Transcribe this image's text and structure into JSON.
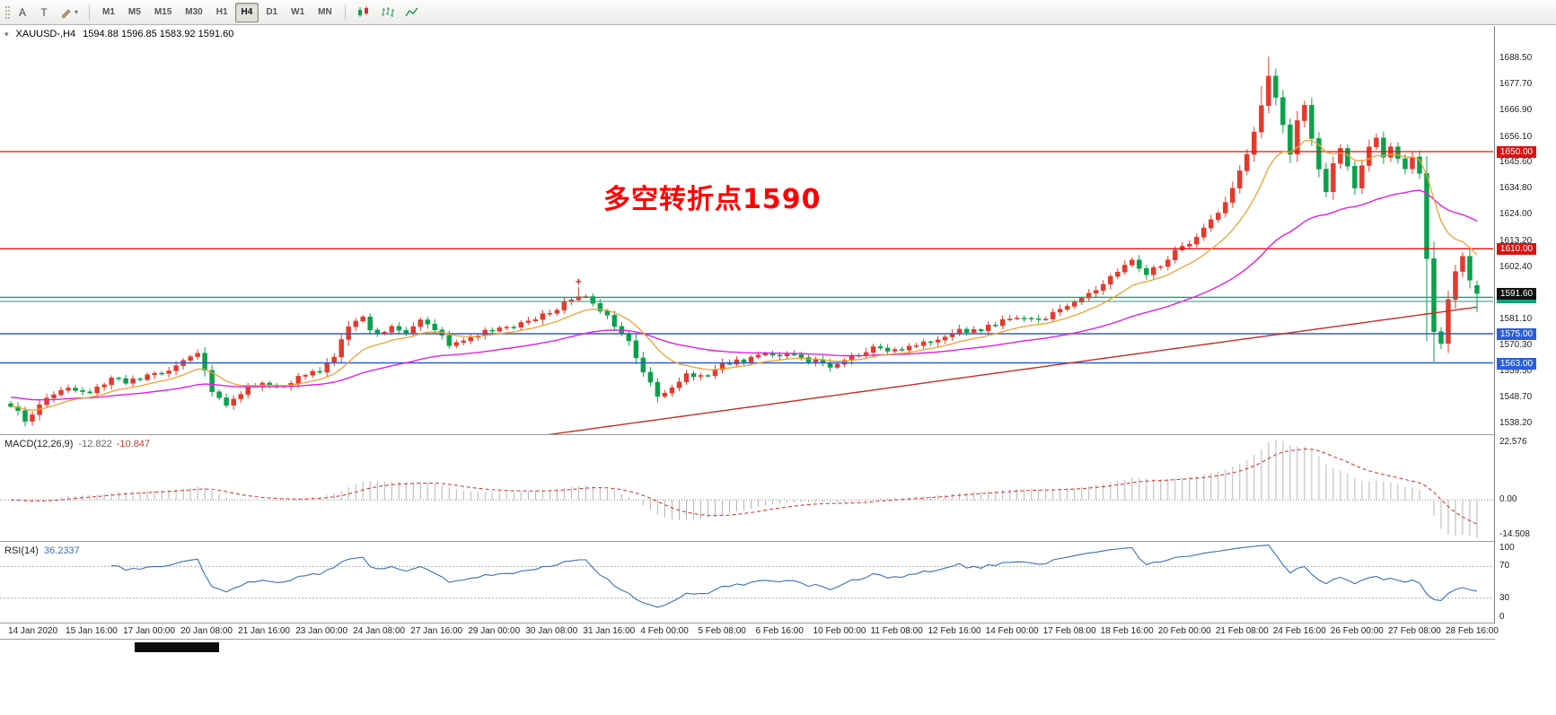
{
  "ui": {
    "header": {
      "symbol": "XAUUSD-,H4",
      "ohlc": "1594.88 1596.85 1583.92 1591.60",
      "expand_glyph": "▾"
    },
    "toolbar": {
      "a_label": "A",
      "t_label": "T",
      "timeframes": [
        {
          "label": "M1"
        },
        {
          "label": "M5"
        },
        {
          "label": "M15"
        },
        {
          "label": "M30"
        },
        {
          "label": "H1"
        },
        {
          "label": "H4",
          "active": true
        },
        {
          "label": "D1"
        },
        {
          "label": "W1"
        },
        {
          "label": "MN"
        }
      ],
      "icons_right": [
        "candlestick-mode-icon",
        "bar-chart-mode-icon",
        "line-chart-mode-icon"
      ]
    },
    "annotation": {
      "text": "多空转折点1590",
      "color": "#ff0000"
    },
    "macd": {
      "label": "MACD(12,26,9)",
      "value_main": "-12.822",
      "value_signal": "-10.847"
    },
    "rsi": {
      "label": "RSI(14)",
      "value": "36.2337"
    }
  },
  "chart_data": {
    "type": "candlestick",
    "symbol": "XAUUSD",
    "timeframe": "H4",
    "bars": 205,
    "ylim": [
      1534,
      1701
    ],
    "y_axis_labels": [
      "1688.50",
      "1677.70",
      "1666.90",
      "1656.10",
      "1645.60",
      "1634.80",
      "1624.00",
      "1613.20",
      "1602.40",
      "1581.10",
      "1570.30",
      "1559.50",
      "1548.70",
      "1538.20"
    ],
    "x_labels": [
      "14 Jan 2020",
      "15 Jan 16:00",
      "17 Jan 00:00",
      "20 Jan 08:00",
      "21 Jan 16:00",
      "23 Jan 00:00",
      "24 Jan 08:00",
      "27 Jan 16:00",
      "29 Jan 00:00",
      "30 Jan 08:00",
      "31 Jan 16:00",
      "4 Feb 00:00",
      "5 Feb 08:00",
      "6 Feb 16:00",
      "10 Feb 00:00",
      "11 Feb 08:00",
      "12 Feb 16:00",
      "14 Feb 00:00",
      "17 Feb 08:00",
      "18 Feb 16:00",
      "20 Feb 00:00",
      "21 Feb 08:00",
      "24 Feb 16:00",
      "26 Feb 00:00",
      "27 Feb 08:00",
      "28 Feb 16:00"
    ],
    "price_path_anchors": [
      [
        0,
        1545
      ],
      [
        2,
        1540
      ],
      [
        5,
        1548
      ],
      [
        8,
        1553
      ],
      [
        11,
        1551
      ],
      [
        14,
        1556
      ],
      [
        16,
        1555
      ],
      [
        19,
        1558
      ],
      [
        22,
        1560
      ],
      [
        25,
        1565
      ],
      [
        26,
        1566
      ],
      [
        28,
        1552
      ],
      [
        30,
        1546
      ],
      [
        32,
        1551
      ],
      [
        34,
        1554
      ],
      [
        37,
        1553
      ],
      [
        40,
        1557
      ],
      [
        43,
        1560
      ],
      [
        45,
        1566
      ],
      [
        47,
        1579
      ],
      [
        49,
        1581
      ],
      [
        51,
        1574
      ],
      [
        53,
        1577
      ],
      [
        55,
        1575
      ],
      [
        57,
        1581
      ],
      [
        59,
        1577
      ],
      [
        61,
        1570
      ],
      [
        63,
        1573
      ],
      [
        66,
        1576
      ],
      [
        69,
        1578
      ],
      [
        72,
        1580
      ],
      [
        75,
        1584
      ],
      [
        78,
        1589
      ],
      [
        80,
        1590
      ],
      [
        82,
        1585
      ],
      [
        84,
        1579
      ],
      [
        86,
        1572
      ],
      [
        88,
        1560
      ],
      [
        90,
        1549
      ],
      [
        92,
        1553
      ],
      [
        94,
        1558
      ],
      [
        96,
        1557
      ],
      [
        99,
        1562
      ],
      [
        102,
        1564
      ],
      [
        105,
        1567
      ],
      [
        108,
        1566
      ],
      [
        111,
        1564
      ],
      [
        114,
        1562
      ],
      [
        117,
        1566
      ],
      [
        120,
        1569
      ],
      [
        123,
        1568
      ],
      [
        126,
        1571
      ],
      [
        129,
        1573
      ],
      [
        132,
        1576
      ],
      [
        135,
        1577
      ],
      [
        138,
        1580
      ],
      [
        141,
        1581
      ],
      [
        144,
        1582
      ],
      [
        147,
        1586
      ],
      [
        150,
        1591
      ],
      [
        152,
        1596
      ],
      [
        154,
        1601
      ],
      [
        156,
        1605
      ],
      [
        158,
        1600
      ],
      [
        160,
        1603
      ],
      [
        162,
        1609
      ],
      [
        164,
        1613
      ],
      [
        166,
        1618
      ],
      [
        168,
        1624
      ],
      [
        170,
        1634
      ],
      [
        172,
        1649
      ],
      [
        174,
        1669
      ],
      [
        175,
        1682
      ],
      [
        176,
        1672
      ],
      [
        177,
        1660
      ],
      [
        178,
        1650
      ],
      [
        179,
        1662
      ],
      [
        180,
        1670
      ],
      [
        181,
        1655
      ],
      [
        182,
        1642
      ],
      [
        183,
        1634
      ],
      [
        184,
        1645
      ],
      [
        185,
        1652
      ],
      [
        186,
        1643
      ],
      [
        187,
        1636
      ],
      [
        188,
        1645
      ],
      [
        189,
        1651
      ],
      [
        190,
        1655
      ],
      [
        191,
        1648
      ],
      [
        192,
        1653
      ],
      [
        193,
        1647
      ],
      [
        194,
        1642
      ],
      [
        195,
        1647
      ],
      [
        196,
        1640
      ],
      [
        197,
        1606
      ],
      [
        198,
        1575
      ],
      [
        199,
        1570
      ],
      [
        200,
        1588
      ],
      [
        201,
        1600
      ],
      [
        202,
        1607
      ],
      [
        203,
        1596
      ],
      [
        204,
        1592
      ]
    ],
    "wick_overrides": [
      {
        "bar": 2,
        "low": 1536.8
      },
      {
        "bar": 79,
        "high": 1594.3
      },
      {
        "bar": 174,
        "high": 1677.0
      },
      {
        "bar": 175,
        "high": 1689.2
      },
      {
        "bar": 197,
        "low": 1572.0
      },
      {
        "bar": 198,
        "low": 1563.3
      }
    ],
    "last_candle": {
      "open": 1594.88,
      "high": 1596.85,
      "low": 1583.92,
      "close": 1591.6
    },
    "current_price_label": "1591.60",
    "levels": [
      {
        "price": 1650.0,
        "label": "1650.00",
        "color": "#dd1111",
        "width": 1.3
      },
      {
        "price": 1610.0,
        "label": "1610.00",
        "color": "#dd1111",
        "width": 1.3
      },
      {
        "price": 1590.0,
        "label": "1590.00",
        "color": "#0fa37c",
        "width": 1.4
      },
      {
        "price": 1588.3,
        "label": "",
        "color": "#0fa37c",
        "width": 1.1
      },
      {
        "price": 1575.0,
        "label": "1575.00",
        "color": "#2b5fd9",
        "width": 1.5
      },
      {
        "price": 1563.0,
        "label": "1563.00",
        "color": "#2b5fd9",
        "width": 1.5
      }
    ],
    "up_color": "#e23b2e",
    "down_color": "#0ba04a",
    "ma_fast_color": "#efa132",
    "ma_mid_color": "#e020e0",
    "ma_slow_color": "#c23028",
    "marker": {
      "bar": 79,
      "price": 1596.5,
      "color": "#cc1111"
    },
    "macd_axis": [
      "22.576",
      "0.00",
      "-14.508"
    ],
    "macd_hist_color": "#b6b6b6",
    "macd_signal_color": "#d22a2a",
    "rsi_axis": [
      "100",
      "70",
      "30",
      "0"
    ],
    "rsi_levels": [
      70,
      30
    ],
    "rsi_color": "#3b6fb5"
  }
}
